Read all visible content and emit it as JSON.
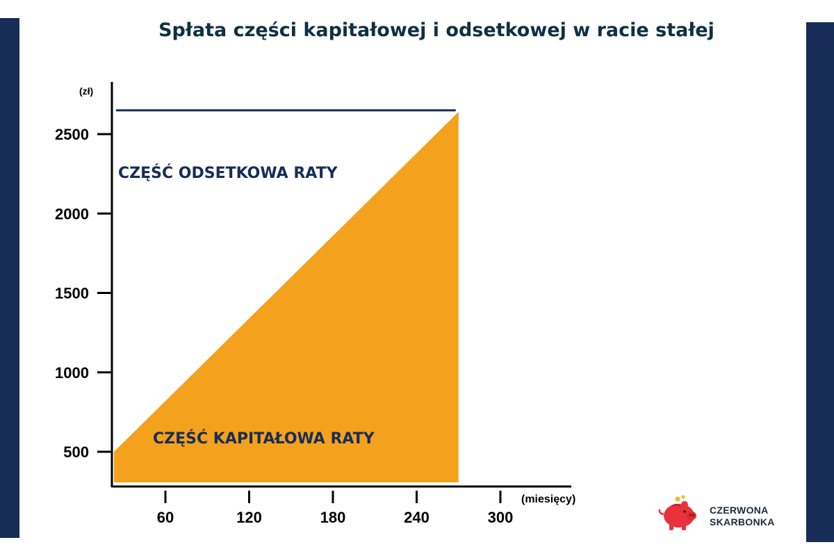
{
  "title": "Spłata części kapitałowej i odsetkowej w racie stałej",
  "logo": {
    "line1": "CZERWONA",
    "line2": "SKARBONKA",
    "icon": "piggy-bank-icon"
  },
  "colors": {
    "navy": "#172d57",
    "orange": "#f4a11d",
    "title": "#0f3040",
    "logo_red": "#e8333c"
  },
  "chart_data": {
    "type": "area",
    "ylabel": "(zł)",
    "xlabel": "(miesięcy)",
    "x_ticks": [
      60,
      120,
      180,
      240,
      300
    ],
    "y_ticks": [
      500,
      1000,
      1500,
      2000,
      2500
    ],
    "installment": 2650,
    "series": [
      {
        "name": "CZĘŚĆ ODSETKOWA RATY",
        "type": "line",
        "x": [
          0,
          270
        ],
        "y": [
          2650,
          2650
        ]
      },
      {
        "name": "CZĘŚĆ KAPITAŁOWA RATY",
        "type": "area",
        "x": [
          0,
          270
        ],
        "y": [
          500,
          2640
        ]
      }
    ]
  }
}
